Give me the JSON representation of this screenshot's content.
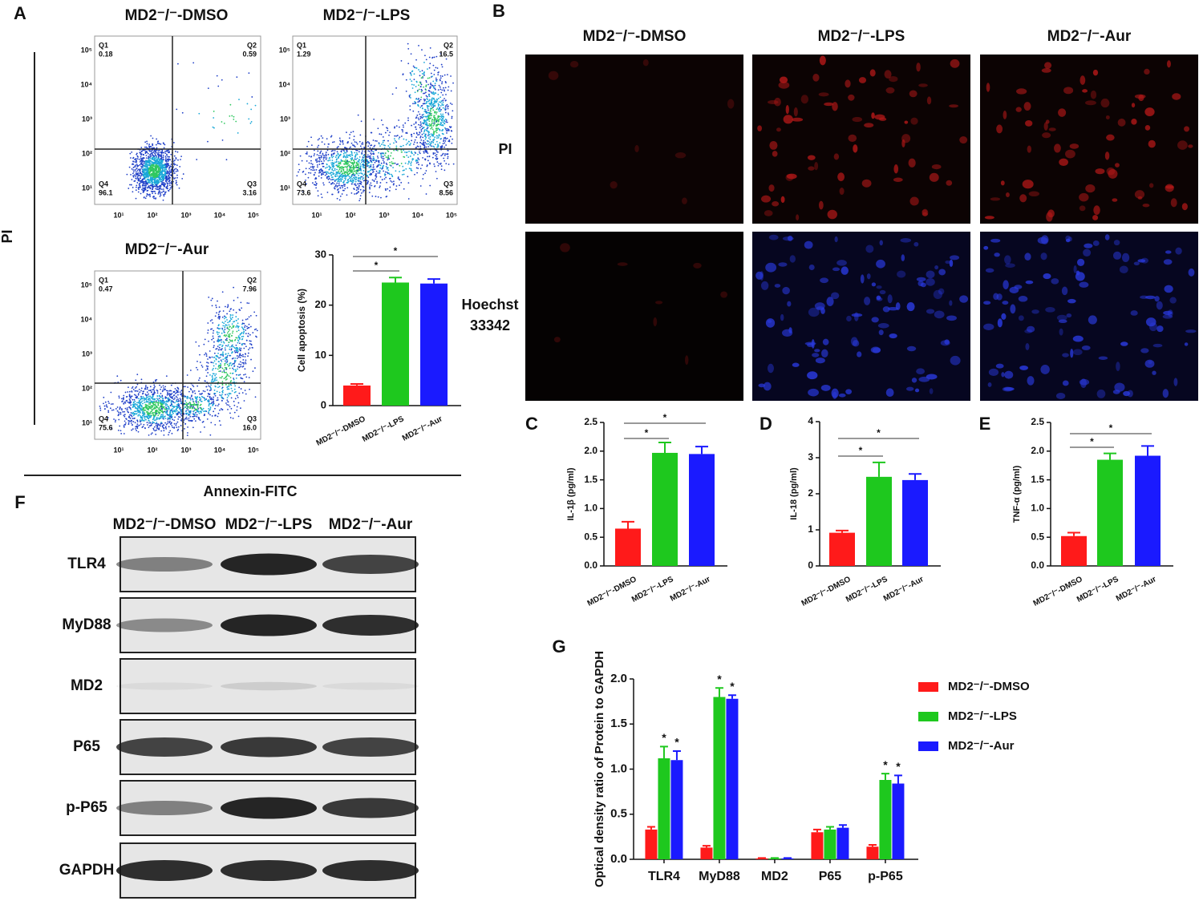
{
  "panel_letters": [
    "A",
    "B",
    "C",
    "D",
    "E",
    "F",
    "G"
  ],
  "flow_cytometry": {
    "y_label": "PI",
    "x_label": "Annexin-FITC",
    "axis_ticks": [
      "10¹",
      "10²",
      "10³",
      "10⁴",
      "10⁵"
    ],
    "plots": [
      {
        "title": "MD2⁻/⁻-DMSO",
        "quadrants": [
          [
            "Q1",
            "0.18"
          ],
          [
            "Q2",
            "0.59"
          ],
          [
            "Q3",
            "3.16"
          ],
          [
            "Q4",
            "96.1"
          ]
        ]
      },
      {
        "title": "MD2⁻/⁻-LPS",
        "quadrants": [
          [
            "Q1",
            "1.29"
          ],
          [
            "Q2",
            "16.5"
          ],
          [
            "Q3",
            "8.56"
          ],
          [
            "Q4",
            "73.6"
          ]
        ]
      },
      {
        "title": "MD2⁻/⁻-Aur",
        "quadrants": [
          [
            "Q1",
            "0.47"
          ],
          [
            "Q2",
            "7.96"
          ],
          [
            "Q3",
            "16.0"
          ],
          [
            "Q4",
            "75.6"
          ]
        ]
      }
    ]
  },
  "fluorescence": {
    "columns": [
      "MD2⁻/⁻-DMSO",
      "MD2⁻/⁻-LPS",
      "MD2⁻/⁻-Aur"
    ],
    "row_labels": [
      [
        "PI"
      ],
      [
        "Hoechst",
        "33342"
      ]
    ]
  },
  "western_blot": {
    "columns": [
      "MD2⁻/⁻-DMSO",
      "MD2⁻/⁻-LPS",
      "MD2⁻/⁻-Aur"
    ],
    "rows": [
      "TLR4",
      "MyD88",
      "MD2",
      "P65",
      "p-P65",
      "GAPDH"
    ]
  },
  "chart_data": [
    {
      "type": "bar",
      "y_label": "Cell apoptosis (%)",
      "categories": [
        "MD2⁻/⁻-DMSO",
        "MD2⁻/⁻-LPS",
        "MD2⁻/⁻-Aur"
      ],
      "values": [
        4,
        24.5,
        24.3
      ],
      "errors": [
        0.3,
        1.0,
        0.9
      ],
      "colors": [
        "#ff1a1a",
        "#1ec81e",
        "#1a1aff"
      ],
      "ylim": [
        0,
        30
      ],
      "yticks": [
        0,
        10,
        20,
        30
      ],
      "annotations": [
        "*",
        "*"
      ]
    },
    {
      "type": "bar",
      "y_label": "IL-1β (pg/ml)",
      "categories": [
        "MD2⁻/⁻-DMSO",
        "MD2⁻/⁻-LPS",
        "MD2⁻/⁻-Aur"
      ],
      "values": [
        0.65,
        1.97,
        1.95
      ],
      "errors": [
        0.12,
        0.18,
        0.13
      ],
      "colors": [
        "#ff1a1a",
        "#1ec81e",
        "#1a1aff"
      ],
      "ylim": [
        0,
        2.5
      ],
      "yticks": [
        {
          "value": 0,
          "label": "0.0"
        },
        0.5,
        {
          "value": 1,
          "label": "1.0"
        },
        1.5,
        {
          "value": 2,
          "label": "2.0"
        },
        2.5
      ],
      "annotations": [
        "*",
        "*"
      ]
    },
    {
      "type": "bar",
      "y_label": "IL-18 (pg/ml)",
      "categories": [
        "MD2⁻/⁻-DMSO",
        "MD2⁻/⁻-LPS",
        "MD2⁻/⁻-Aur"
      ],
      "values": [
        0.92,
        2.47,
        2.38
      ],
      "errors": [
        0.06,
        0.4,
        0.17
      ],
      "colors": [
        "#ff1a1a",
        "#1ec81e",
        "#1a1aff"
      ],
      "ylim": [
        0,
        4
      ],
      "yticks": [
        0,
        1,
        2,
        3,
        4
      ],
      "annotations": [
        "*",
        "*"
      ]
    },
    {
      "type": "bar",
      "y_label": "TNF-α (pg/ml)",
      "categories": [
        "MD2⁻/⁻-DMSO",
        "MD2⁻/⁻-LPS",
        "MD2⁻/⁻-Aur"
      ],
      "values": [
        0.52,
        1.85,
        1.92
      ],
      "errors": [
        0.06,
        0.11,
        0.17
      ],
      "colors": [
        "#ff1a1a",
        "#1ec81e",
        "#1a1aff"
      ],
      "ylim": [
        0,
        2.5
      ],
      "yticks": [
        {
          "value": 0,
          "label": "0.0"
        },
        0.5,
        {
          "value": 1,
          "label": "1.0"
        },
        1.5,
        {
          "value": 2,
          "label": "2.0"
        },
        2.5
      ],
      "annotations": [
        "*",
        "*"
      ]
    },
    {
      "type": "grouped_bar",
      "y_label": "Optical density ratio of Protein to GAPDH",
      "categories": [
        "TLR4",
        "MyD88",
        "MD2",
        "P65",
        "p-P65"
      ],
      "series": [
        {
          "name": "MD2⁻/⁻-DMSO",
          "color": "#ff1a1a",
          "values": [
            0.33,
            0.13,
            0.01,
            0.3,
            0.14
          ],
          "errors": [
            0.03,
            0.02,
            0.005,
            0.03,
            0.02
          ],
          "annotations": [
            null,
            null,
            null,
            null,
            null
          ]
        },
        {
          "name": "MD2⁻/⁻-LPS",
          "color": "#1ec81e",
          "values": [
            1.12,
            1.8,
            0.01,
            0.33,
            0.88
          ],
          "errors": [
            0.13,
            0.1,
            0.005,
            0.03,
            0.07
          ],
          "annotations": [
            "*",
            "*",
            null,
            null,
            "*"
          ]
        },
        {
          "name": "MD2⁻/⁻-Aur",
          "color": "#1a1aff",
          "values": [
            1.1,
            1.78,
            0.01,
            0.35,
            0.84
          ],
          "errors": [
            0.1,
            0.04,
            0.005,
            0.03,
            0.09
          ],
          "annotations": [
            "*",
            "*",
            null,
            null,
            "*"
          ]
        }
      ],
      "ylim": [
        0,
        2.0
      ],
      "yticks": [
        {
          "value": 0,
          "label": "0.0"
        },
        0.5,
        {
          "value": 1,
          "label": "1.0"
        },
        1.5,
        {
          "value": 2,
          "label": "2.0"
        }
      ]
    }
  ]
}
